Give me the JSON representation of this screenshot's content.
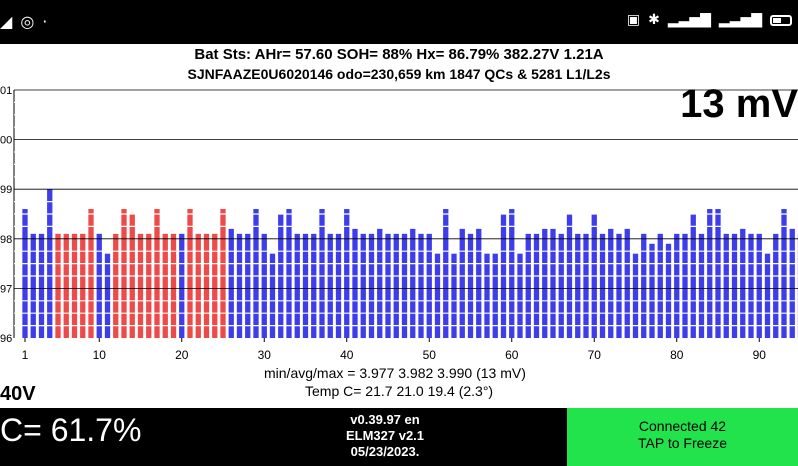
{
  "status_bar": {
    "left_icons": [
      "navigation-icon",
      "chrome-icon",
      "dot-icon"
    ],
    "right_icons": [
      "nfc-icon",
      "bluetooth-icon",
      "signal-icon",
      "signal-icon",
      "battery-icon"
    ]
  },
  "header": {
    "line1": "Bat Sts:  AHr= 57.60  SOH= 88%  Hx= 86.79%  382.27V 1.21A",
    "line2": "SJNFAAZE0U6020146 odo=230,659 km  1847 QCs & 5281 L1/L2s",
    "delta": "13 mV"
  },
  "stats": {
    "line1": "min/avg/max = 3.977 3.982 3.990  (13 mV)",
    "line2": "Temp C= 21.7  21.0  19.4  (2.3°)",
    "voltage": "40V"
  },
  "footer": {
    "soc": "C= 61.7%",
    "version": [
      "v0.39.97 en",
      "ELM327 v2.1",
      "05/23/2023."
    ],
    "connected_line1": "Connected 42",
    "connected_line2": "TAP to Freeze"
  },
  "colors": {
    "bar_blue": "#3d3deb",
    "bar_red": "#ee4a4a",
    "connect_green": "#22e34b"
  },
  "chart_data": {
    "type": "bar",
    "title": "",
    "xlabel": "",
    "ylabel": "",
    "x_ticks": [
      1,
      10,
      20,
      30,
      40,
      50,
      60,
      70,
      80,
      90
    ],
    "y_tick_labels": [
      "01",
      "00",
      "99",
      "98",
      "97",
      "96"
    ],
    "ylim": [
      3.96,
      4.01
    ],
    "grid": true,
    "series": [
      {
        "values": [
          3.986,
          3.981,
          3.981,
          3.99,
          3.981,
          3.981,
          3.981,
          3.981,
          3.986,
          3.981,
          3.977,
          3.981,
          3.986,
          3.985,
          3.981,
          3.981,
          3.986,
          3.981,
          3.981,
          3.981,
          3.986,
          3.981,
          3.981,
          3.981,
          3.986,
          3.982,
          3.981,
          3.981,
          3.986,
          3.981,
          3.977,
          3.985,
          3.986,
          3.981,
          3.981,
          3.981,
          3.986,
          3.981,
          3.981,
          3.986,
          3.982,
          3.981,
          3.981,
          3.982,
          3.981,
          3.981,
          3.981,
          3.982,
          3.981,
          3.981,
          3.977,
          3.986,
          3.977,
          3.982,
          3.981,
          3.982,
          3.977,
          3.977,
          3.985,
          3.986,
          3.977,
          3.981,
          3.981,
          3.982,
          3.982,
          3.981,
          3.985,
          3.981,
          3.981,
          3.985,
          3.981,
          3.982,
          3.981,
          3.982,
          3.977,
          3.981,
          3.979,
          3.981,
          3.979,
          3.981,
          3.981,
          3.985,
          3.981,
          3.986,
          3.986,
          3.981,
          3.981,
          3.982,
          3.981,
          3.981,
          3.977,
          3.981,
          3.986,
          3.982,
          3.981
        ],
        "red_cells": [
          5,
          6,
          7,
          8,
          9,
          12,
          13,
          14,
          15,
          16,
          17,
          18,
          19,
          21,
          22,
          23,
          24,
          25
        ]
      }
    ]
  }
}
